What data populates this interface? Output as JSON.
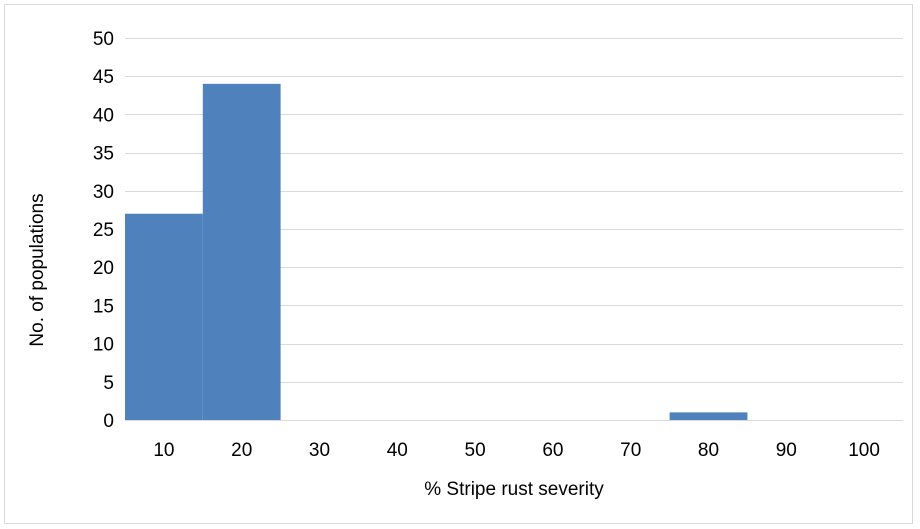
{
  "chart_data": {
    "type": "bar",
    "categories": [
      "10",
      "20",
      "30",
      "40",
      "50",
      "60",
      "70",
      "80",
      "90",
      "100"
    ],
    "values": [
      27,
      44,
      0,
      0,
      0,
      0,
      0,
      1,
      0,
      0
    ],
    "xlabel": "% Stripe rust severity",
    "ylabel": "No. of populations",
    "ylim": [
      0,
      50
    ],
    "yticks": [
      0,
      5,
      10,
      15,
      20,
      25,
      30,
      35,
      40,
      45,
      50
    ],
    "grid": true,
    "legend": "none",
    "bar_color": "#4f81bd",
    "grid_color": "#d9d9d9"
  }
}
